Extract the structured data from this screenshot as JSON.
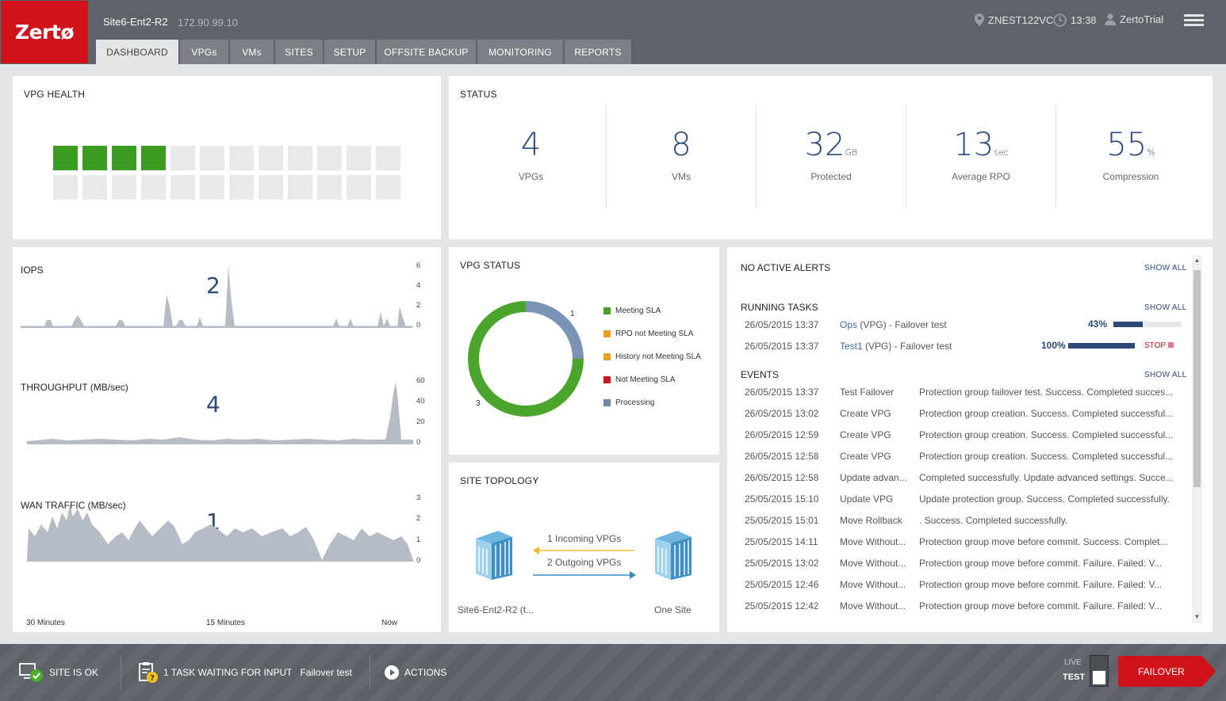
{
  "header": {
    "logo": "Zertø",
    "site_name": "Site6-Ent2-R2",
    "site_ip": "172.90.99.10",
    "vcenter": "ZNEST122VC",
    "time": "13:38",
    "user": "ZertoTrial",
    "icons": [
      "location-pin-icon",
      "clock-icon",
      "user-icon",
      "hamburger-menu-icon"
    ]
  },
  "tabs": [
    "DASHBOARD",
    "VPGs",
    "VMs",
    "SITES",
    "SETUP",
    "OFFSITE BACKUP",
    "MONITORING",
    "REPORTS"
  ],
  "vpg_health": {
    "title": "VPG HEALTH",
    "healthy": 4,
    "total_cells": 24
  },
  "status": {
    "title": "STATUS",
    "items": [
      {
        "value": "4",
        "unit": "",
        "label": "VPGs"
      },
      {
        "value": "8",
        "unit": "",
        "label": "VMs"
      },
      {
        "value": "32",
        "unit": "GB",
        "label": "Protected"
      },
      {
        "value": "13",
        "unit": "sec",
        "label": "Average RPO"
      },
      {
        "value": "55",
        "unit": "%",
        "label": "Compression"
      }
    ]
  },
  "charts": {
    "iops": {
      "label": "IOPS",
      "current": "2",
      "ticks": [
        "6",
        "4",
        "2",
        "0"
      ]
    },
    "throughput": {
      "label": "THROUGHPUT (MB/sec)",
      "current": "4",
      "ticks": [
        "60",
        "40",
        "20",
        "0"
      ]
    },
    "wan": {
      "label": "WAN TRAFFIC (MB/sec)",
      "current": "1",
      "ticks": [
        "3",
        "2",
        "1",
        "0"
      ]
    },
    "time_labels": [
      "30 Minutes",
      "15 Minutes",
      "Now"
    ]
  },
  "vpg_status": {
    "title": "VPG STATUS",
    "legend": [
      {
        "label": "Meeting SLA",
        "color": "#4a9e2a"
      },
      {
        "label": "RPO not Meeting SLA",
        "color": "#f0a020"
      },
      {
        "label": "History not Meeting SLA",
        "color": "#f0a020"
      },
      {
        "label": "Not Meeting SLA",
        "color": "#d0131a"
      },
      {
        "label": "Processing",
        "color": "#6f87a8"
      }
    ],
    "meeting_count": "3",
    "processing_count": "1"
  },
  "chart_data": {
    "type": "pie",
    "title": "VPG STATUS",
    "categories": [
      "Meeting SLA",
      "RPO not Meeting SLA",
      "History not Meeting SLA",
      "Not Meeting SLA",
      "Processing"
    ],
    "values": [
      3,
      0,
      0,
      0,
      1
    ]
  },
  "site_topology": {
    "title": "SITE TOPOLOGY",
    "incoming": "1 Incoming VPGs",
    "outgoing": "2 Outgoing VPGs",
    "local_site": "Site6-Ent2-R2 (t...",
    "remote_site": "One Site"
  },
  "alerts": {
    "no_alerts": "NO ACTIVE ALERTS",
    "show_all": "SHOW ALL",
    "running_tasks_title": "RUNNING TASKS",
    "tasks": [
      {
        "time": "26/05/2015 13:37",
        "link": "Ops",
        "rest": " (VPG) - Failover test",
        "pct": "43%",
        "progress": 0.43,
        "stop": ""
      },
      {
        "time": "26/05/2015 13:37",
        "link": "Test1",
        "rest": " (VPG) - Failover test",
        "pct": "100%",
        "progress": 1.0,
        "stop": "STOP"
      }
    ],
    "events_title": "EVENTS",
    "events": [
      {
        "time": "26/05/2015 13:37",
        "type": "Test Failover",
        "desc": "Protection group failover test. Success. Completed succes..."
      },
      {
        "time": "26/05/2015 13:02",
        "type": "Create VPG",
        "desc": "Protection group creation. Success. Completed successful..."
      },
      {
        "time": "26/05/2015 12:59",
        "type": "Create VPG",
        "desc": "Protection group creation. Success. Completed successful..."
      },
      {
        "time": "26/05/2015 12:58",
        "type": "Create VPG",
        "desc": "Protection group creation. Success. Completed successful..."
      },
      {
        "time": "26/05/2015 12:58",
        "type": "Update advan...",
        "desc": "Completed successfully. Update advanced settings. Succe..."
      },
      {
        "time": "25/05/2015 15:10",
        "type": "Update VPG",
        "desc": "Update protection group. Success. Completed successfully."
      },
      {
        "time": "25/05/2015 15:01",
        "type": "Move Rollback",
        "desc": ". Success. Completed successfully."
      },
      {
        "time": "25/05/2015 14:11",
        "type": "Move Without...",
        "desc": "Protection group move before commit. Success. Complet..."
      },
      {
        "time": "25/05/2015 13:02",
        "type": "Move Without...",
        "desc": "Protection group move before commit. Failure. Failed: V..."
      },
      {
        "time": "25/05/2015 12:46",
        "type": "Move Without...",
        "desc": "Protection group move before commit. Failure. Failed: V..."
      },
      {
        "time": "25/05/2015 12:42",
        "type": "Move Without...",
        "desc": "Protection group move before commit. Failure. Failed: V..."
      }
    ]
  },
  "footer": {
    "site_ok": "SITE IS OK",
    "task_waiting": "1 TASK WAITING FOR INPUT",
    "task_name": "Failover test",
    "actions": "ACTIONS",
    "live": "LIVE",
    "test": "TEST",
    "failover": "FAILOVER"
  }
}
